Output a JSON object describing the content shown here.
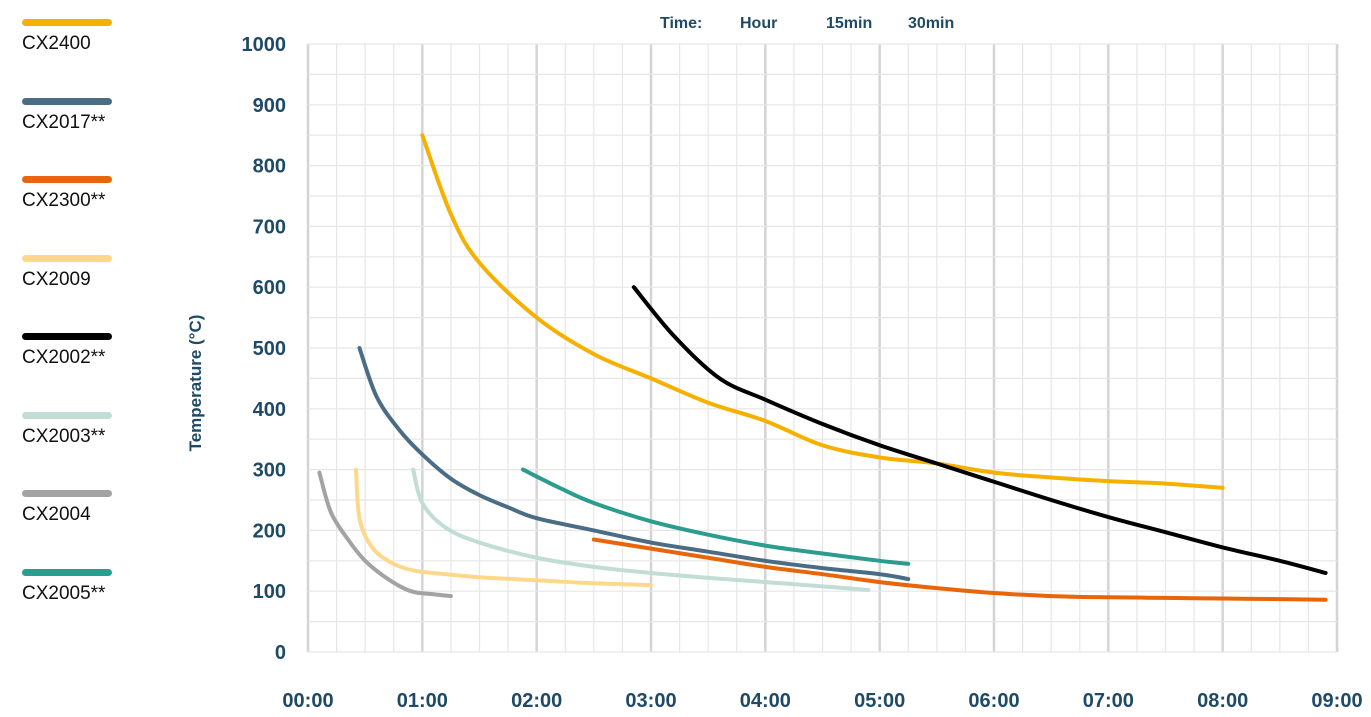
{
  "colors": {
    "grid": "#e6e6e6",
    "grid_major": "#d4d4d4",
    "tick_text": "#1f4a66"
  },
  "time_scale": {
    "label": "Time:",
    "options": [
      "Hour",
      "15min",
      "30min"
    ]
  },
  "chart_data": {
    "type": "line",
    "title": "",
    "xlabel": "",
    "ylabel": "Temperature (°C)",
    "x_unit": "hours",
    "xlim": [
      0,
      9
    ],
    "ylim": [
      0,
      1000
    ],
    "x_tick_labels": [
      "00:00",
      "01:00",
      "02:00",
      "03:00",
      "04:00",
      "05:00",
      "06:00",
      "07:00",
      "08:00",
      "09:00"
    ],
    "y_ticks": [
      0,
      100,
      200,
      300,
      400,
      500,
      600,
      700,
      800,
      900,
      1000
    ],
    "grid": true,
    "legend_position": "left",
    "series": [
      {
        "name": "CX2400",
        "color": "#f5b000",
        "points": [
          [
            1.0,
            850
          ],
          [
            1.25,
            720
          ],
          [
            1.5,
            640
          ],
          [
            2.0,
            550
          ],
          [
            2.5,
            490
          ],
          [
            3.0,
            450
          ],
          [
            3.5,
            410
          ],
          [
            4.0,
            380
          ],
          [
            4.5,
            340
          ],
          [
            5.0,
            320
          ],
          [
            5.5,
            310
          ],
          [
            6.0,
            295
          ],
          [
            6.5,
            287
          ],
          [
            7.0,
            281
          ],
          [
            7.5,
            277
          ],
          [
            8.0,
            270
          ]
        ]
      },
      {
        "name": "CX2017**",
        "color": "#4a6d85",
        "points": [
          [
            0.45,
            500
          ],
          [
            0.6,
            420
          ],
          [
            0.8,
            365
          ],
          [
            1.0,
            325
          ],
          [
            1.25,
            285
          ],
          [
            1.5,
            258
          ],
          [
            1.75,
            238
          ],
          [
            2.0,
            220
          ],
          [
            2.5,
            200
          ],
          [
            3.0,
            180
          ],
          [
            3.5,
            165
          ],
          [
            4.0,
            150
          ],
          [
            4.5,
            138
          ],
          [
            5.0,
            128
          ],
          [
            5.25,
            120
          ]
        ]
      },
      {
        "name": "CX2300**",
        "color": "#e8650a",
        "points": [
          [
            2.5,
            185
          ],
          [
            3.0,
            170
          ],
          [
            3.5,
            155
          ],
          [
            4.0,
            140
          ],
          [
            4.5,
            128
          ],
          [
            5.0,
            115
          ],
          [
            5.5,
            105
          ],
          [
            6.0,
            97
          ],
          [
            6.5,
            92
          ],
          [
            7.0,
            90
          ],
          [
            7.5,
            89
          ],
          [
            8.0,
            88
          ],
          [
            8.5,
            87
          ],
          [
            8.9,
            86
          ]
        ]
      },
      {
        "name": "CX2009",
        "color": "#fdd88a",
        "points": [
          [
            0.42,
            300
          ],
          [
            0.45,
            220
          ],
          [
            0.55,
            175
          ],
          [
            0.7,
            150
          ],
          [
            0.9,
            135
          ],
          [
            1.2,
            128
          ],
          [
            1.5,
            123
          ],
          [
            2.0,
            118
          ],
          [
            2.5,
            113
          ],
          [
            3.0,
            110
          ]
        ]
      },
      {
        "name": "CX2002**",
        "color": "#000000",
        "points": [
          [
            2.85,
            600
          ],
          [
            3.2,
            520
          ],
          [
            3.6,
            450
          ],
          [
            4.0,
            415
          ],
          [
            4.5,
            375
          ],
          [
            5.0,
            340
          ],
          [
            5.5,
            310
          ],
          [
            6.0,
            280
          ],
          [
            6.5,
            250
          ],
          [
            7.0,
            222
          ],
          [
            7.5,
            197
          ],
          [
            8.0,
            172
          ],
          [
            8.5,
            150
          ],
          [
            8.9,
            130
          ]
        ]
      },
      {
        "name": "CX2003**",
        "color": "#c1ddd5",
        "points": [
          [
            0.92,
            300
          ],
          [
            1.0,
            245
          ],
          [
            1.2,
            205
          ],
          [
            1.5,
            180
          ],
          [
            2.0,
            155
          ],
          [
            2.5,
            140
          ],
          [
            3.0,
            130
          ],
          [
            3.5,
            122
          ],
          [
            4.0,
            115
          ],
          [
            4.5,
            108
          ],
          [
            4.9,
            102
          ]
        ]
      },
      {
        "name": "CX2004",
        "color": "#a3a3a3",
        "points": [
          [
            0.1,
            295
          ],
          [
            0.2,
            230
          ],
          [
            0.35,
            185
          ],
          [
            0.5,
            150
          ],
          [
            0.7,
            120
          ],
          [
            0.9,
            100
          ],
          [
            1.1,
            95
          ],
          [
            1.25,
            92
          ]
        ]
      },
      {
        "name": "CX2005**",
        "color": "#2a9d8f",
        "points": [
          [
            1.88,
            300
          ],
          [
            2.2,
            270
          ],
          [
            2.5,
            245
          ],
          [
            3.0,
            215
          ],
          [
            3.5,
            193
          ],
          [
            4.0,
            175
          ],
          [
            4.5,
            162
          ],
          [
            5.0,
            150
          ],
          [
            5.25,
            145
          ]
        ]
      }
    ]
  }
}
